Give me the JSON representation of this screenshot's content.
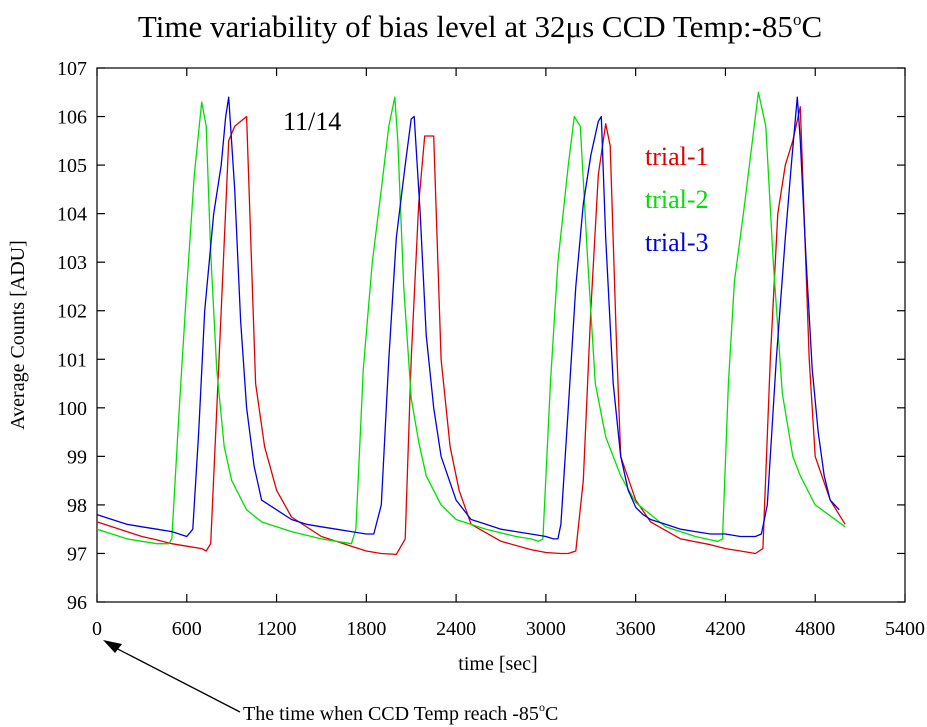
{
  "chart_data": {
    "type": "line",
    "title": "Time variability of bias level at 32μs  CCD Temp:-85",
    "title_degree": "o",
    "title_unit": "C",
    "xlabel": "time [sec]",
    "ylabel": "Average Counts [ADU]",
    "xlim": [
      0,
      5400
    ],
    "ylim": [
      96,
      107
    ],
    "xticks": [
      "0",
      "600",
      "1200",
      "1800",
      "2400",
      "3000",
      "3600",
      "4200",
      "4800",
      "5400"
    ],
    "yticks": [
      "96",
      "97",
      "98",
      "99",
      "100",
      "101",
      "102",
      "103",
      "104",
      "105",
      "106",
      "107"
    ],
    "grid": false,
    "legend_placement": "inside top-right",
    "annotation_date": "11/14",
    "annotation_note": "The time when CCD Temp reach -85",
    "annotation_note_degree": "o",
    "annotation_note_unit": "C",
    "series": [
      {
        "name": "trial-1",
        "color": "#e00000",
        "x": [
          0,
          100,
          200,
          300,
          400,
          500,
          600,
          700,
          730,
          760,
          830,
          880,
          920,
          1000,
          1060,
          1120,
          1200,
          1300,
          1500,
          1700,
          1800,
          1900,
          2000,
          2060,
          2100,
          2150,
          2190,
          2250,
          2300,
          2360,
          2420,
          2500,
          2700,
          2900,
          3000,
          3100,
          3150,
          3200,
          3250,
          3300,
          3350,
          3400,
          3430,
          3470,
          3500,
          3600,
          3700,
          3900,
          4100,
          4200,
          4300,
          4400,
          4450,
          4500,
          4550,
          4600,
          4650,
          4700,
          4760,
          4800,
          4900,
          5000
        ],
        "values": [
          97.65,
          97.55,
          97.45,
          97.35,
          97.28,
          97.2,
          97.15,
          97.1,
          97.05,
          97.2,
          102.0,
          105.5,
          105.8,
          106.0,
          100.5,
          99.2,
          98.3,
          97.75,
          97.35,
          97.15,
          97.05,
          97.0,
          96.98,
          97.3,
          101.0,
          104.2,
          105.6,
          105.6,
          101.0,
          99.2,
          98.3,
          97.6,
          97.25,
          97.08,
          97.02,
          97.0,
          97.0,
          97.05,
          98.5,
          102.0,
          104.8,
          105.85,
          105.4,
          101.5,
          99.0,
          98.1,
          97.65,
          97.3,
          97.18,
          97.1,
          97.05,
          97.0,
          97.1,
          101.0,
          104.0,
          105.0,
          105.5,
          106.2,
          101.0,
          99.0,
          98.1,
          97.6
        ]
      },
      {
        "name": "trial-2",
        "color": "#00e000",
        "x": [
          0,
          100,
          200,
          300,
          400,
          480,
          500,
          550,
          600,
          650,
          700,
          730,
          760,
          800,
          850,
          900,
          1000,
          1100,
          1300,
          1500,
          1600,
          1700,
          1730,
          1780,
          1840,
          1900,
          1950,
          1990,
          2010,
          2050,
          2100,
          2150,
          2200,
          2300,
          2400,
          2600,
          2800,
          2900,
          2950,
          2980,
          3030,
          3080,
          3150,
          3190,
          3230,
          3280,
          3330,
          3400,
          3500,
          3600,
          3800,
          4000,
          4100,
          4150,
          4180,
          4220,
          4260,
          4320,
          4380,
          4420,
          4470,
          4520,
          4580,
          4650,
          4700,
          4800,
          5000
        ],
        "values": [
          97.5,
          97.4,
          97.3,
          97.25,
          97.2,
          97.2,
          97.3,
          100.0,
          102.5,
          104.8,
          106.3,
          105.8,
          103.2,
          100.8,
          99.2,
          98.5,
          97.9,
          97.65,
          97.45,
          97.3,
          97.25,
          97.2,
          97.5,
          100.8,
          103.0,
          104.5,
          105.8,
          106.4,
          105.5,
          102.5,
          100.2,
          99.3,
          98.6,
          98.0,
          97.7,
          97.5,
          97.35,
          97.3,
          97.25,
          97.3,
          100.5,
          103.0,
          105.0,
          106.0,
          105.8,
          103.0,
          100.5,
          99.4,
          98.6,
          98.05,
          97.55,
          97.35,
          97.28,
          97.25,
          97.3,
          100.5,
          102.6,
          104.0,
          105.5,
          106.5,
          105.8,
          103.0,
          100.3,
          99.0,
          98.6,
          98.0,
          97.55
        ]
      },
      {
        "name": "trial-3",
        "color": "#0000e0",
        "x": [
          0,
          100,
          200,
          300,
          400,
          500,
          600,
          640,
          680,
          720,
          780,
          830,
          860,
          880,
          920,
          960,
          1000,
          1050,
          1100,
          1200,
          1300,
          1400,
          1500,
          1600,
          1700,
          1800,
          1850,
          1900,
          1950,
          2000,
          2060,
          2100,
          2120,
          2160,
          2200,
          2250,
          2300,
          2400,
          2500,
          2600,
          2700,
          2800,
          2900,
          3000,
          3050,
          3080,
          3100,
          3150,
          3200,
          3250,
          3300,
          3350,
          3370,
          3400,
          3450,
          3500,
          3550,
          3600,
          3650,
          3700,
          3800,
          3900,
          4000,
          4100,
          4200,
          4300,
          4400,
          4440,
          4480,
          4540,
          4600,
          4640,
          4680,
          4700,
          4740,
          4780,
          4820,
          4860,
          4900,
          4960
        ],
        "values": [
          97.8,
          97.7,
          97.6,
          97.55,
          97.5,
          97.45,
          97.35,
          97.5,
          99.5,
          102.0,
          104.0,
          105.0,
          106.0,
          106.4,
          104.5,
          101.8,
          100.0,
          98.8,
          98.1,
          97.9,
          97.7,
          97.6,
          97.55,
          97.5,
          97.45,
          97.4,
          97.4,
          98.0,
          101.0,
          103.5,
          105.0,
          105.95,
          106.0,
          104.0,
          101.5,
          100.0,
          99.0,
          98.1,
          97.7,
          97.6,
          97.5,
          97.45,
          97.4,
          97.35,
          97.3,
          97.3,
          97.6,
          100.0,
          102.5,
          104.2,
          105.2,
          105.9,
          106.0,
          103.5,
          100.5,
          99.0,
          98.3,
          97.95,
          97.8,
          97.7,
          97.6,
          97.5,
          97.45,
          97.4,
          97.4,
          97.35,
          97.35,
          97.4,
          98.0,
          101.0,
          103.5,
          105.0,
          106.4,
          105.5,
          103.0,
          100.8,
          99.5,
          98.6,
          98.1,
          97.9
        ]
      }
    ]
  }
}
